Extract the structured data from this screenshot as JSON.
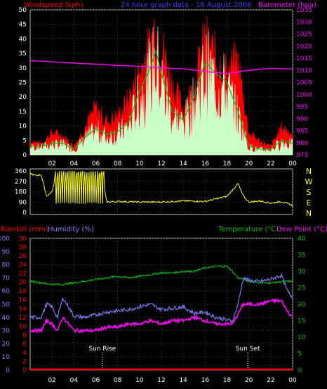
{
  "header": {
    "windspeed_label": "Windspeed (kph)",
    "title": "24 hour graph data - 16 August 2006",
    "barometer_label": "Barometer (hpa)"
  },
  "footer": {
    "rainfall_label": "Rainfall (mm)",
    "humidity_label": "Humidity (%)",
    "temperature_label": "Temperature (°C)",
    "dewpoint_label": "Dew Point (°C)",
    "sun_rise": "Sun Rise",
    "sun_set": "Sun Set"
  },
  "colors": {
    "windspeed": "#ff0000",
    "windaverage": "#00c000",
    "windgust_fill": "#c8ffc8",
    "barometer": "#ff00ff",
    "direction": "#ffff00",
    "humidity": "#8080ff",
    "dewpoint": "#ff00ff",
    "temperature": "#00c000",
    "rainfall": "#ff0000",
    "axis_text": "#ffffff"
  },
  "chart_data": [
    {
      "type": "area",
      "title": "24 hour graph data - 16 August 2006",
      "x_ticks": [
        "02",
        "04",
        "06",
        "08",
        "10",
        "12",
        "14",
        "16",
        "18",
        "20",
        "22",
        "00"
      ],
      "y_left_label": "Windspeed (kph)",
      "y_left_ticks": [
        0,
        5,
        10,
        15,
        20,
        25,
        30,
        35,
        40,
        45,
        50
      ],
      "y_left_lim": [
        0,
        50
      ],
      "y_right_label": "Barometer (hpa)",
      "y_right_ticks": [
        975,
        980,
        985,
        990,
        995,
        1000,
        1005,
        1010,
        1015,
        1020,
        1025,
        1030,
        1035
      ],
      "y_right_lim": [
        975,
        1035
      ],
      "grid": true,
      "series": [
        {
          "name": "Windspeed (kph)",
          "axis": "left",
          "x": [
            0,
            1,
            2,
            3,
            4,
            5,
            6,
            7,
            8,
            9,
            10,
            11,
            11.5,
            12,
            13,
            14,
            15,
            16,
            17,
            18,
            19,
            20,
            21,
            22,
            23,
            24
          ],
          "values": [
            5,
            4,
            8,
            7,
            3,
            10,
            17,
            12,
            14,
            20,
            30,
            40,
            48,
            40,
            25,
            17,
            25,
            42,
            35,
            30,
            34,
            8,
            5,
            3,
            10,
            8
          ]
        },
        {
          "name": "Wind average",
          "axis": "left",
          "x": [
            0,
            1,
            2,
            3,
            4,
            5,
            6,
            7,
            8,
            9,
            10,
            11,
            11.5,
            12,
            13,
            14,
            15,
            16,
            17,
            18,
            19,
            20,
            21,
            22,
            23,
            24
          ],
          "values": [
            3,
            3,
            4,
            4,
            2,
            6,
            9,
            7,
            8,
            11,
            22,
            30,
            36,
            28,
            15,
            12,
            20,
            32,
            28,
            25,
            15,
            3,
            2,
            2,
            5,
            4
          ]
        },
        {
          "name": "Barometer (hpa)",
          "axis": "right",
          "x": [
            0,
            2,
            4,
            6,
            8,
            10,
            12,
            14,
            16,
            18,
            20,
            22,
            24
          ],
          "values": [
            1014,
            1013.5,
            1013,
            1012.5,
            1012,
            1011.6,
            1011,
            1010.6,
            1009.5,
            1008.6,
            1010,
            1010.8,
            1010.5
          ]
        }
      ]
    },
    {
      "type": "line",
      "x_ticks": [
        "02",
        "04",
        "06",
        "08",
        "10",
        "12",
        "14",
        "16",
        "18",
        "20",
        "22",
        "00"
      ],
      "y_left_ticks": [
        0,
        90,
        180,
        270,
        360
      ],
      "y_left_lim": [
        0,
        360
      ],
      "y_right_ticks": [
        "N",
        "W",
        "S",
        "E",
        "N"
      ],
      "series": [
        {
          "name": "Wind direction",
          "x": [
            0,
            0.5,
            1,
            1.5,
            2,
            2.5,
            3,
            3.5,
            4,
            4.5,
            5,
            5.5,
            6,
            6.5,
            7,
            8,
            10,
            12,
            14,
            16,
            18,
            19,
            19.5,
            20,
            21,
            22,
            23,
            24
          ],
          "values": [
            340,
            320,
            330,
            140,
            180,
            360,
            60,
            350,
            80,
            360,
            100,
            360,
            60,
            360,
            90,
            95,
            90,
            90,
            100,
            95,
            140,
            250,
            140,
            90,
            100,
            80,
            95,
            60
          ]
        }
      ]
    },
    {
      "type": "line",
      "x_ticks": [
        "02",
        "04",
        "06",
        "08",
        "10",
        "12",
        "14",
        "16",
        "18",
        "20",
        "22",
        "00"
      ],
      "y_left_label": "Humidity (%)",
      "y_humidity_ticks": [
        0,
        10,
        20,
        30,
        40,
        50,
        60,
        70,
        80,
        90,
        100
      ],
      "y_rain_ticks": [
        0,
        2,
        4,
        6,
        8,
        10,
        12,
        14,
        16,
        18,
        20,
        22,
        24,
        26,
        28,
        30
      ],
      "y_right_label": "Temperature (°C)",
      "y_temp_ticks": [
        0,
        5,
        10,
        15,
        20,
        25,
        30,
        35,
        40
      ],
      "y_temp_lim": [
        0,
        40
      ],
      "annotations": [
        {
          "x": 6.6,
          "text": "Sun Rise"
        },
        {
          "x": 19.9,
          "text": "Sun Set"
        }
      ],
      "series": [
        {
          "name": "Humidity (%)",
          "axis": "humidity",
          "x": [
            0,
            1,
            1.5,
            2,
            2.5,
            3,
            4,
            5,
            6,
            7,
            8,
            9,
            10,
            11,
            12,
            13,
            14,
            15,
            16,
            17,
            18,
            18.5,
            19,
            19.5,
            20,
            21,
            22,
            23,
            23.5,
            24
          ],
          "values": [
            40,
            40,
            50,
            48,
            40,
            55,
            41,
            40,
            42,
            44,
            45,
            46,
            48,
            50,
            46,
            47,
            48,
            43,
            44,
            40,
            38,
            37,
            50,
            70,
            68,
            67,
            69,
            72,
            60,
            55
          ]
        },
        {
          "name": "Dew Point (°C)",
          "axis": "temp",
          "x": [
            0,
            1,
            1.5,
            2,
            2.5,
            3,
            4,
            5,
            6,
            7,
            8,
            9,
            10,
            11,
            12,
            13,
            14,
            15,
            16,
            17,
            18,
            18.5,
            19,
            19.5,
            20,
            21,
            22,
            23,
            23.5,
            24
          ],
          "values": [
            12,
            12,
            15,
            14,
            12,
            16,
            12,
            12,
            12,
            13,
            13,
            14,
            14,
            15,
            14,
            15,
            15,
            16,
            15,
            14,
            14,
            14,
            17,
            20,
            20,
            20,
            21,
            21,
            18,
            16
          ]
        },
        {
          "name": "Temperature (°C)",
          "axis": "temp",
          "x": [
            0,
            1,
            2,
            3,
            4,
            5,
            6,
            7,
            8,
            9,
            10,
            11,
            12,
            13,
            14,
            15,
            16,
            17,
            18,
            18.5,
            19,
            20,
            21,
            22,
            23,
            24
          ],
          "values": [
            27,
            26.5,
            26,
            26,
            26.5,
            27,
            27.5,
            28,
            28.5,
            28,
            28.5,
            29,
            29.5,
            29.5,
            30,
            30,
            31,
            31.5,
            31.5,
            30,
            28,
            27,
            26.5,
            26.5,
            26.8,
            27
          ]
        },
        {
          "name": "Rainfall (mm)",
          "axis": "rain",
          "x": [
            0,
            24
          ],
          "values": [
            0,
            0
          ]
        }
      ]
    }
  ]
}
